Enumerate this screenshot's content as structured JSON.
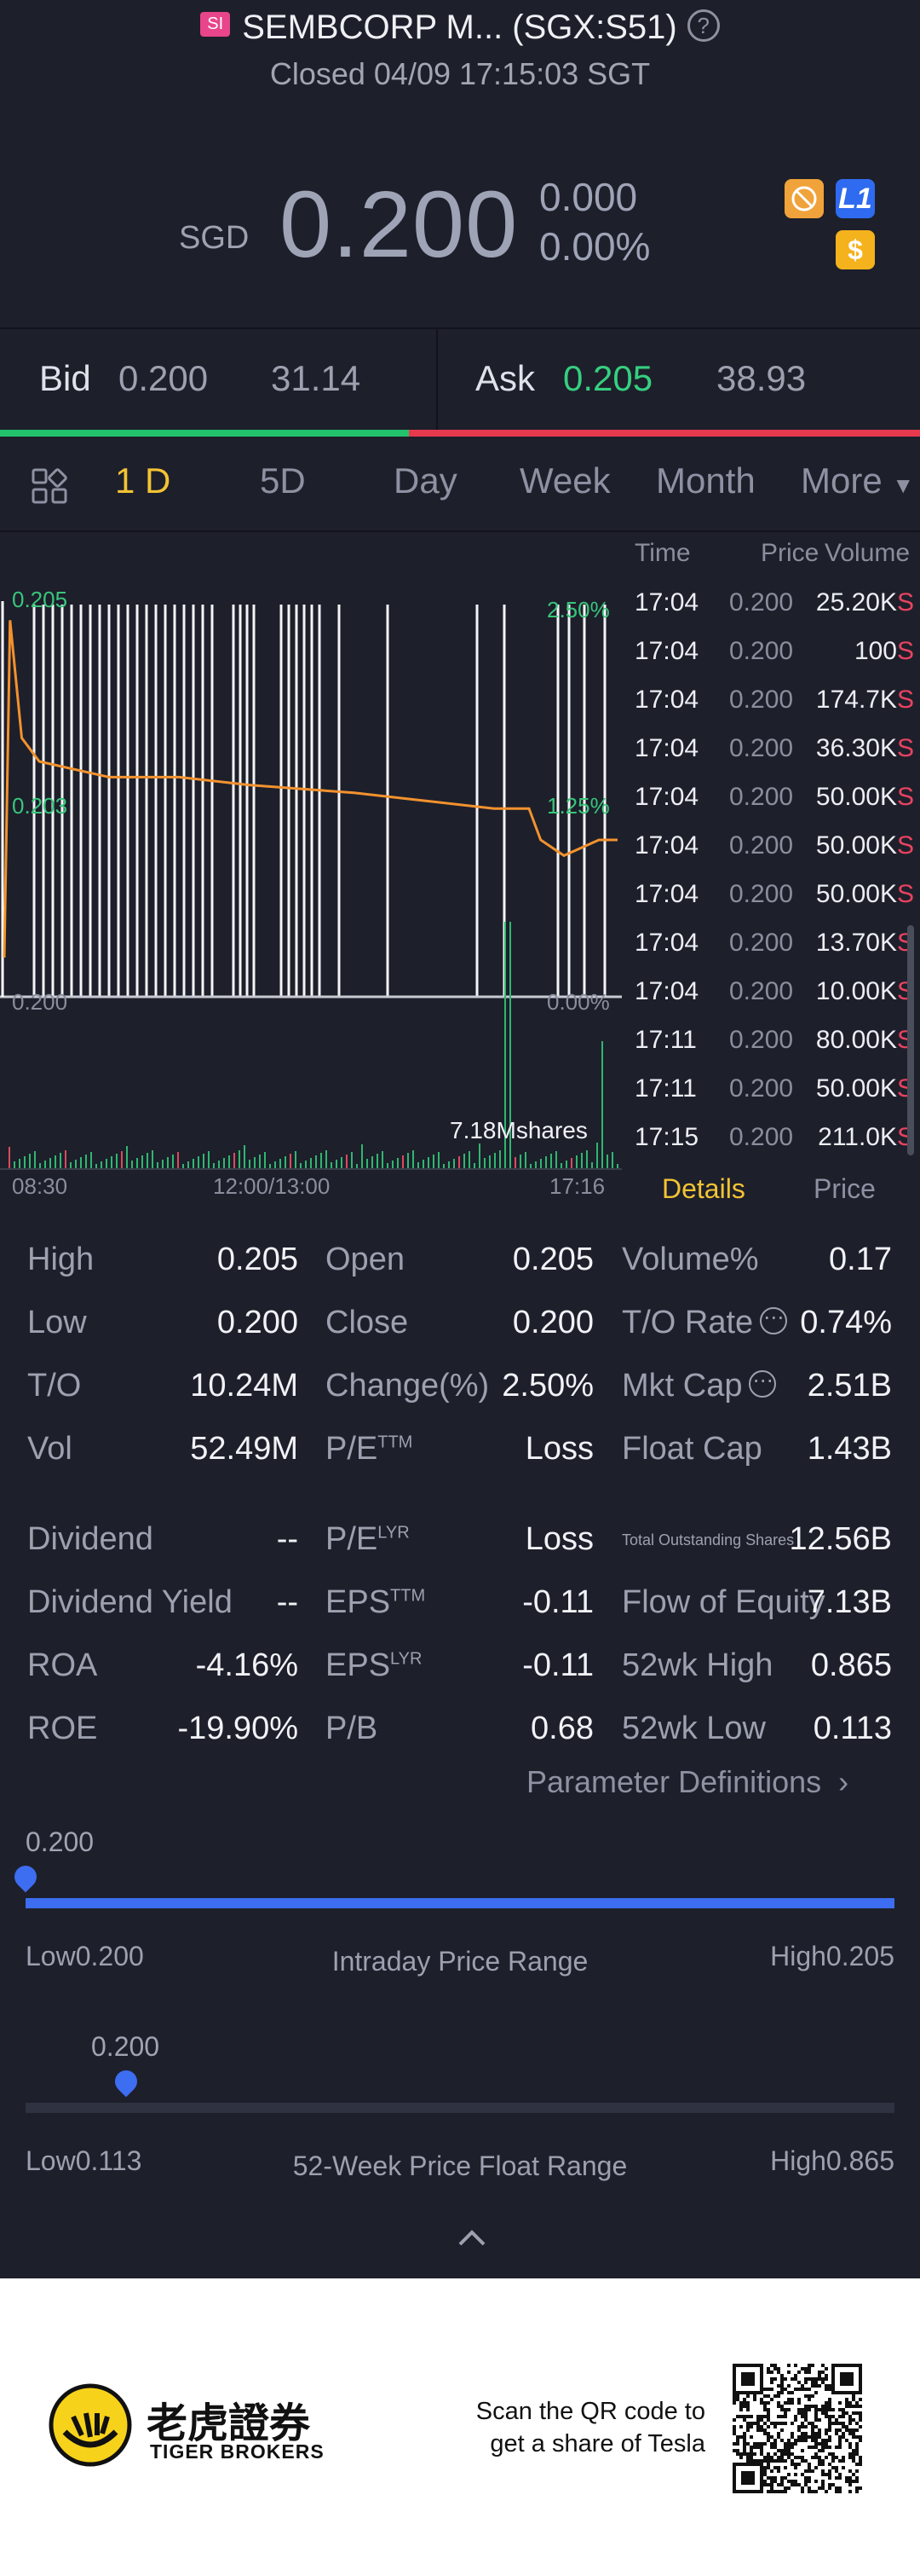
{
  "header": {
    "badge": "SI",
    "title": "SEMBCORP M... (SGX:S51)",
    "help": "?",
    "status": "Closed 04/09 17:15:03 SGT"
  },
  "quote": {
    "currency": "SGD",
    "price": "0.200",
    "change": "0.000",
    "change_pct": "0.00%",
    "badge_l1": "L1",
    "badge_dollar": "$"
  },
  "bidask": {
    "bid_label": "Bid",
    "bid_price": "0.200",
    "bid_size": "31.14",
    "ask_label": "Ask",
    "ask_price": "0.205",
    "ask_size": "38.93",
    "bid_fraction": 0.444,
    "colors": {
      "bid": "#21c26b",
      "ask": "#e6394e"
    }
  },
  "tabs": [
    "1 D",
    "5D",
    "Day",
    "Week",
    "Month",
    "More"
  ],
  "active_tab": 0,
  "chart": {
    "y_labels": [
      "0.205",
      "0.203",
      "0.200"
    ],
    "pct_labels": [
      "2.50%",
      "1.25%",
      "0.00%"
    ],
    "x_labels": [
      "08:30",
      "12:00/13:00",
      "17:16"
    ],
    "volume_label": "7.18Mshares"
  },
  "chart_data": {
    "type": "line",
    "series": [
      {
        "x": [
          "08:30",
          "08:35",
          "08:45",
          "09:00",
          "10:00",
          "11:00",
          "12:00",
          "13:30",
          "14:30",
          "15:30",
          "16:00",
          "16:10",
          "16:30",
          "17:00",
          "17:16"
        ],
        "values": [
          0.2005,
          0.2048,
          0.2033,
          0.203,
          0.2028,
          0.2028,
          0.2027,
          0.2026,
          0.2025,
          0.2024,
          0.2024,
          0.202,
          0.2018,
          0.202,
          0.202
        ]
      }
    ],
    "ylim": [
      0.2,
      0.205
    ],
    "grid": false
  },
  "trades": {
    "headers": [
      "Time",
      "Price",
      "Volume"
    ],
    "rows": [
      {
        "time": "17:04",
        "price": "0.200",
        "volume": "25.20K",
        "side": "S"
      },
      {
        "time": "17:04",
        "price": "0.200",
        "volume": "100",
        "side": "S"
      },
      {
        "time": "17:04",
        "price": "0.200",
        "volume": "174.7K",
        "side": "S"
      },
      {
        "time": "17:04",
        "price": "0.200",
        "volume": "36.30K",
        "side": "S"
      },
      {
        "time": "17:04",
        "price": "0.200",
        "volume": "50.00K",
        "side": "S"
      },
      {
        "time": "17:04",
        "price": "0.200",
        "volume": "50.00K",
        "side": "S"
      },
      {
        "time": "17:04",
        "price": "0.200",
        "volume": "50.00K",
        "side": "S"
      },
      {
        "time": "17:04",
        "price": "0.200",
        "volume": "13.70K",
        "side": "S"
      },
      {
        "time": "17:04",
        "price": "0.200",
        "volume": "10.00K",
        "side": "S"
      },
      {
        "time": "17:11",
        "price": "0.200",
        "volume": "80.00K",
        "side": "S"
      },
      {
        "time": "17:11",
        "price": "0.200",
        "volume": "50.00K",
        "side": "S"
      },
      {
        "time": "17:15",
        "price": "0.200",
        "volume": "211.0K",
        "side": "S"
      }
    ]
  },
  "subtabs": [
    "Details",
    "Price"
  ],
  "stats": {
    "c1": [
      {
        "label": "High",
        "value": "0.205"
      },
      {
        "label": "Low",
        "value": "0.200"
      },
      {
        "label": "T/O",
        "value": "10.24M"
      },
      {
        "label": "Vol",
        "value": "52.49M"
      },
      {
        "label": "Dividend",
        "value": "--"
      },
      {
        "label": "Dividend Yield",
        "value": "--"
      },
      {
        "label": "ROA",
        "value": "-4.16%"
      },
      {
        "label": "ROE",
        "value": "-19.90%"
      }
    ],
    "c2": [
      {
        "label": "Open",
        "sup": "",
        "value": "0.205"
      },
      {
        "label": "Close",
        "sup": "",
        "value": "0.200"
      },
      {
        "label": "Change(%)",
        "sup": "",
        "value": "2.50%"
      },
      {
        "label": "P/E",
        "sup": "TTM",
        "value": "Loss"
      },
      {
        "label": "P/E",
        "sup": "LYR",
        "value": "Loss"
      },
      {
        "label": "EPS",
        "sup": "TTM",
        "value": "-0.11"
      },
      {
        "label": "EPS",
        "sup": "LYR",
        "value": "-0.11"
      },
      {
        "label": "P/B",
        "sup": "",
        "value": "0.68"
      }
    ],
    "c3": [
      {
        "label": "Volume%",
        "value": "0.17"
      },
      {
        "label": "T/O Rate",
        "value": "0.74%"
      },
      {
        "label": "Mkt Cap",
        "value": "2.51B"
      },
      {
        "label": "Float Cap",
        "value": "1.43B"
      },
      {
        "label": "Total Outstanding Shares",
        "value": "12.56B"
      },
      {
        "label": "Flow of Equity",
        "value": "7.13B"
      },
      {
        "label": "52wk High",
        "value": "0.865"
      },
      {
        "label": "52wk Low",
        "value": "0.113"
      }
    ],
    "dots": "⋯"
  },
  "param_def": "Parameter Definitions",
  "intraday": {
    "current": "0.200",
    "low_label": "Low",
    "low": "0.200",
    "high_label": "High",
    "high": "0.205",
    "title": "Intraday Price Range",
    "position": 0.0
  },
  "week52": {
    "current": "0.200",
    "low_label": "Low",
    "low": "0.113",
    "high_label": "High",
    "high": "0.865",
    "title": "52-Week Price Float Range",
    "position": 0.116
  },
  "footer": {
    "brand_cn": "老虎證券",
    "brand_en": "TIGER BROKERS",
    "qr_text_1": "Scan the QR code to",
    "qr_text_2": "get a share of Tesla"
  }
}
